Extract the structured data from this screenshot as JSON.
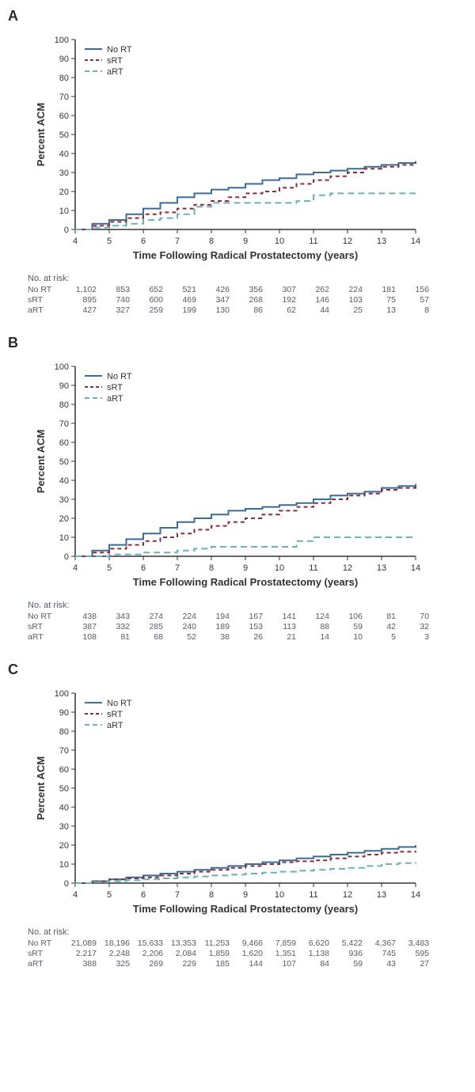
{
  "colors": {
    "no_rt": "#3a6c9a",
    "srt": "#8a2d3a",
    "art": "#6bb1b8",
    "axis": "#333333",
    "text": "#333333",
    "risk_text": "#555c66",
    "background": "#ffffff"
  },
  "global": {
    "xlabel": "Time Following Radical Prostatectomy (years)",
    "ylabel": "Percent ACM",
    "xlim": [
      4,
      14
    ],
    "ylim": [
      0,
      100
    ],
    "xtick_step": 1,
    "ytick_step": 10,
    "xlabel_fontsize": 13,
    "ylabel_fontsize": 13,
    "tick_fontsize": 11,
    "legend_fontsize": 11,
    "line_width": 2
  },
  "panels": [
    {
      "label": "A",
      "legend": [
        {
          "name": "No RT",
          "color": "#3a6c9a",
          "dash": "none"
        },
        {
          "name": "sRT",
          "color": "#8a2d3a",
          "dash": "4 3"
        },
        {
          "name": "aRT",
          "color": "#6bb1b8",
          "dash": "6 4"
        }
      ],
      "series": {
        "no_rt": {
          "x": [
            4,
            4.5,
            5,
            5.5,
            6,
            6.5,
            7,
            7.5,
            8,
            8.5,
            9,
            9.5,
            10,
            10.5,
            11,
            11.5,
            12,
            12.5,
            13,
            13.5,
            14
          ],
          "y": [
            0,
            3,
            5,
            8,
            11,
            14,
            17,
            19,
            21,
            22,
            24,
            26,
            27,
            29,
            30,
            31,
            32,
            33,
            34,
            35,
            36
          ]
        },
        "srt": {
          "x": [
            4,
            4.5,
            5,
            5.5,
            6,
            6.5,
            7,
            7.5,
            8,
            8.5,
            9,
            9.5,
            10,
            10.5,
            11,
            11.5,
            12,
            12.5,
            13,
            13.5,
            14
          ],
          "y": [
            0,
            2,
            4,
            6,
            8,
            9,
            11,
            13,
            15,
            17,
            19,
            20,
            22,
            24,
            26,
            28,
            30,
            32,
            33,
            34,
            35
          ]
        },
        "art": {
          "x": [
            4,
            4.5,
            5,
            5.5,
            6,
            6.5,
            7,
            7.5,
            8,
            8.5,
            9,
            9.5,
            10,
            10.5,
            11,
            11.5,
            12,
            12.5,
            13,
            13.5,
            14
          ],
          "y": [
            0,
            1,
            2,
            3,
            5,
            6,
            8,
            12,
            14,
            14,
            14,
            14,
            14,
            15,
            18,
            19,
            19,
            19,
            19,
            19,
            19
          ]
        }
      },
      "risk_title": "No. at risk:",
      "risk_rows": [
        {
          "label": "No RT",
          "values": [
            "1,102",
            "853",
            "652",
            "521",
            "426",
            "356",
            "307",
            "262",
            "224",
            "181",
            "156"
          ]
        },
        {
          "label": "sRT",
          "values": [
            "895",
            "740",
            "600",
            "469",
            "347",
            "268",
            "192",
            "146",
            "103",
            "75",
            "57"
          ]
        },
        {
          "label": "aRT",
          "values": [
            "427",
            "327",
            "259",
            "199",
            "130",
            "86",
            "62",
            "44",
            "25",
            "13",
            "8"
          ]
        }
      ]
    },
    {
      "label": "B",
      "legend": [
        {
          "name": "No RT",
          "color": "#3a6c9a",
          "dash": "none"
        },
        {
          "name": "sRT",
          "color": "#8a2d3a",
          "dash": "4 3"
        },
        {
          "name": "aRT",
          "color": "#6bb1b8",
          "dash": "6 4"
        }
      ],
      "series": {
        "no_rt": {
          "x": [
            4,
            4.5,
            5,
            5.5,
            6,
            6.5,
            7,
            7.5,
            8,
            8.5,
            9,
            9.5,
            10,
            10.5,
            11,
            11.5,
            12,
            12.5,
            13,
            13.5,
            14
          ],
          "y": [
            0,
            3,
            6,
            9,
            12,
            15,
            18,
            20,
            22,
            24,
            25,
            26,
            27,
            28,
            30,
            32,
            33,
            34,
            36,
            37,
            38
          ]
        },
        "srt": {
          "x": [
            4,
            4.5,
            5,
            5.5,
            6,
            6.5,
            7,
            7.5,
            8,
            8.5,
            9,
            9.5,
            10,
            10.5,
            11,
            11.5,
            12,
            12.5,
            13,
            13.5,
            14
          ],
          "y": [
            0,
            2,
            4,
            6,
            8,
            10,
            12,
            14,
            16,
            18,
            20,
            22,
            24,
            26,
            28,
            30,
            32,
            33,
            35,
            36,
            38
          ]
        },
        "art": {
          "x": [
            4,
            4.5,
            5,
            5.5,
            6,
            6.5,
            7,
            7.5,
            8,
            8.5,
            9,
            9.5,
            10,
            10.5,
            11,
            11.5,
            12,
            12.5,
            13,
            13.5,
            14
          ],
          "y": [
            0,
            0,
            1,
            1,
            2,
            2,
            3,
            4,
            5,
            5,
            5,
            5,
            5,
            8,
            10,
            10,
            10,
            10,
            10,
            10,
            10
          ]
        }
      },
      "risk_title": "No. at risk:",
      "risk_rows": [
        {
          "label": "No RT",
          "values": [
            "438",
            "343",
            "274",
            "224",
            "194",
            "167",
            "141",
            "124",
            "106",
            "81",
            "70"
          ]
        },
        {
          "label": "sRT",
          "values": [
            "387",
            "332",
            "285",
            "240",
            "189",
            "153",
            "113",
            "88",
            "59",
            "42",
            "32"
          ]
        },
        {
          "label": "aRT",
          "values": [
            "108",
            "81",
            "68",
            "52",
            "38",
            "26",
            "21",
            "14",
            "10",
            "5",
            "3"
          ]
        }
      ]
    },
    {
      "label": "C",
      "legend": [
        {
          "name": "No RT",
          "color": "#3a6c9a",
          "dash": "none"
        },
        {
          "name": "sRT",
          "color": "#8a2d3a",
          "dash": "4 3"
        },
        {
          "name": "aRT",
          "color": "#6bb1b8",
          "dash": "6 4"
        }
      ],
      "series": {
        "no_rt": {
          "x": [
            4,
            4.5,
            5,
            5.5,
            6,
            6.5,
            7,
            7.5,
            8,
            8.5,
            9,
            9.5,
            10,
            10.5,
            11,
            11.5,
            12,
            12.5,
            13,
            13.5,
            14
          ],
          "y": [
            0,
            1,
            2,
            3,
            4,
            5,
            6,
            7,
            8,
            9,
            10,
            11,
            12,
            13,
            14,
            15,
            16,
            17,
            18,
            19,
            20
          ]
        },
        "srt": {
          "x": [
            4,
            4.5,
            5,
            5.5,
            6,
            6.5,
            7,
            7.5,
            8,
            8.5,
            9,
            9.5,
            10,
            10.5,
            11,
            11.5,
            12,
            12.5,
            13,
            13.5,
            14
          ],
          "y": [
            0,
            1,
            2,
            2.5,
            3,
            4,
            5,
            6,
            7,
            8,
            9,
            10,
            11,
            11.5,
            12,
            13,
            14,
            15,
            16,
            16.5,
            17
          ]
        },
        "art": {
          "x": [
            4,
            4.5,
            5,
            5.5,
            6,
            6.5,
            7,
            7.5,
            8,
            8.5,
            9,
            9.5,
            10,
            10.5,
            11,
            11.5,
            12,
            12.5,
            13,
            13.5,
            14
          ],
          "y": [
            0,
            0.5,
            1,
            1.5,
            2,
            2.5,
            3,
            3.5,
            4,
            4.5,
            5,
            5.5,
            6,
            6.5,
            7,
            7.5,
            8,
            9,
            10,
            10.5,
            11
          ]
        }
      },
      "risk_title": "No. at risk:",
      "risk_rows": [
        {
          "label": "No RT",
          "values": [
            "21,089",
            "18,196",
            "15,633",
            "13,353",
            "11,253",
            "9,466",
            "7,859",
            "6,620",
            "5,422",
            "4,367",
            "3,483"
          ]
        },
        {
          "label": "sRT",
          "values": [
            "2,217",
            "2,248",
            "2,206",
            "2,084",
            "1,859",
            "1,620",
            "1,351",
            "1,138",
            "936",
            "745",
            "595"
          ]
        },
        {
          "label": "aRT",
          "values": [
            "388",
            "325",
            "269",
            "229",
            "185",
            "144",
            "107",
            "84",
            "59",
            "43",
            "27"
          ]
        }
      ]
    }
  ]
}
